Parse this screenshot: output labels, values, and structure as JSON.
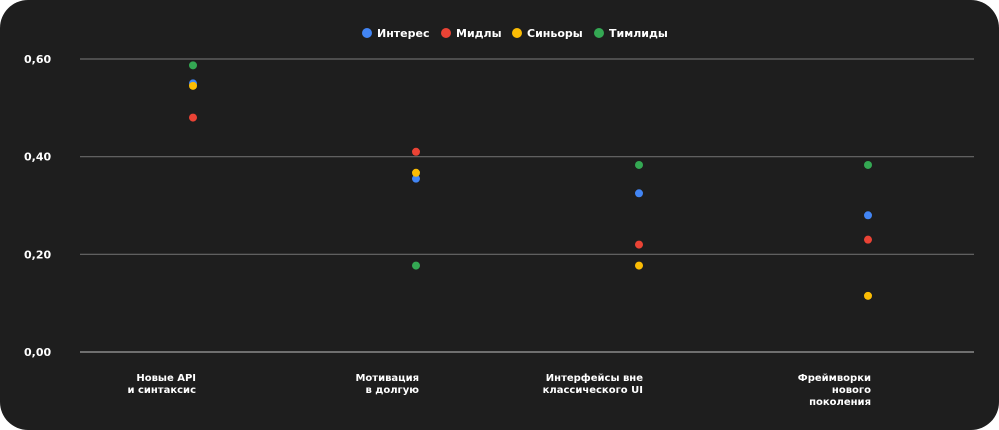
{
  "chart_data": {
    "type": "scatter",
    "title": "",
    "xlabel": "",
    "ylabel": "",
    "categories": [
      [
        "Новые API",
        "и синтаксис"
      ],
      [
        "Мотивация",
        "в долгую"
      ],
      [
        "Интерфейсы вне",
        "классического UI"
      ],
      [
        "Фреймворки",
        "нового",
        "поколения"
      ]
    ],
    "series": [
      {
        "name": "Интерес",
        "color": "#4285f4",
        "values": [
          0.55,
          0.355,
          0.325,
          0.28
        ]
      },
      {
        "name": "Мидлы",
        "color": "#ea4335",
        "values": [
          0.48,
          0.41,
          0.22,
          0.23
        ]
      },
      {
        "name": "Синьоры",
        "color": "#fbbc04",
        "values": [
          0.545,
          0.367,
          0.177,
          0.115
        ]
      },
      {
        "name": "Тимлиды",
        "color": "#34a853",
        "values": [
          0.587,
          0.177,
          0.383,
          0.383
        ]
      }
    ],
    "yticks": [
      0.0,
      0.2,
      0.4,
      0.6
    ],
    "ytick_labels": [
      "0,00",
      "0,20",
      "0,40",
      "0,60"
    ],
    "ylim": [
      0,
      0.6
    ],
    "grid": true,
    "legend_position": "top-center"
  }
}
